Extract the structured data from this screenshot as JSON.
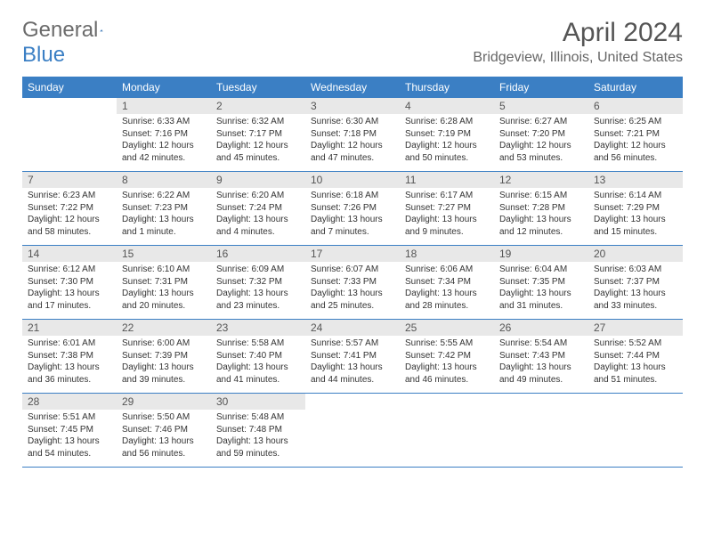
{
  "logo": {
    "part1": "General",
    "part2": "Blue"
  },
  "title": "April 2024",
  "location": "Bridgeview, Illinois, United States",
  "colors": {
    "header_bg": "#3b7fc4",
    "header_fg": "#ffffff",
    "daynum_bg": "#e8e8e8",
    "row_border": "#3b7fc4",
    "text": "#333333"
  },
  "font": {
    "family": "Arial",
    "daynum_size": 12,
    "cell_size": 10,
    "title_size": 30,
    "location_size": 16
  },
  "days_of_week": [
    "Sunday",
    "Monday",
    "Tuesday",
    "Wednesday",
    "Thursday",
    "Friday",
    "Saturday"
  ],
  "rows": [
    [
      {
        "n": "",
        "sr": "",
        "ss": "",
        "dl1": "",
        "dl2": "",
        "empty": true
      },
      {
        "n": "1",
        "sr": "Sunrise: 6:33 AM",
        "ss": "Sunset: 7:16 PM",
        "dl1": "Daylight: 12 hours",
        "dl2": "and 42 minutes."
      },
      {
        "n": "2",
        "sr": "Sunrise: 6:32 AM",
        "ss": "Sunset: 7:17 PM",
        "dl1": "Daylight: 12 hours",
        "dl2": "and 45 minutes."
      },
      {
        "n": "3",
        "sr": "Sunrise: 6:30 AM",
        "ss": "Sunset: 7:18 PM",
        "dl1": "Daylight: 12 hours",
        "dl2": "and 47 minutes."
      },
      {
        "n": "4",
        "sr": "Sunrise: 6:28 AM",
        "ss": "Sunset: 7:19 PM",
        "dl1": "Daylight: 12 hours",
        "dl2": "and 50 minutes."
      },
      {
        "n": "5",
        "sr": "Sunrise: 6:27 AM",
        "ss": "Sunset: 7:20 PM",
        "dl1": "Daylight: 12 hours",
        "dl2": "and 53 minutes."
      },
      {
        "n": "6",
        "sr": "Sunrise: 6:25 AM",
        "ss": "Sunset: 7:21 PM",
        "dl1": "Daylight: 12 hours",
        "dl2": "and 56 minutes."
      }
    ],
    [
      {
        "n": "7",
        "sr": "Sunrise: 6:23 AM",
        "ss": "Sunset: 7:22 PM",
        "dl1": "Daylight: 12 hours",
        "dl2": "and 58 minutes."
      },
      {
        "n": "8",
        "sr": "Sunrise: 6:22 AM",
        "ss": "Sunset: 7:23 PM",
        "dl1": "Daylight: 13 hours",
        "dl2": "and 1 minute."
      },
      {
        "n": "9",
        "sr": "Sunrise: 6:20 AM",
        "ss": "Sunset: 7:24 PM",
        "dl1": "Daylight: 13 hours",
        "dl2": "and 4 minutes."
      },
      {
        "n": "10",
        "sr": "Sunrise: 6:18 AM",
        "ss": "Sunset: 7:26 PM",
        "dl1": "Daylight: 13 hours",
        "dl2": "and 7 minutes."
      },
      {
        "n": "11",
        "sr": "Sunrise: 6:17 AM",
        "ss": "Sunset: 7:27 PM",
        "dl1": "Daylight: 13 hours",
        "dl2": "and 9 minutes."
      },
      {
        "n": "12",
        "sr": "Sunrise: 6:15 AM",
        "ss": "Sunset: 7:28 PM",
        "dl1": "Daylight: 13 hours",
        "dl2": "and 12 minutes."
      },
      {
        "n": "13",
        "sr": "Sunrise: 6:14 AM",
        "ss": "Sunset: 7:29 PM",
        "dl1": "Daylight: 13 hours",
        "dl2": "and 15 minutes."
      }
    ],
    [
      {
        "n": "14",
        "sr": "Sunrise: 6:12 AM",
        "ss": "Sunset: 7:30 PM",
        "dl1": "Daylight: 13 hours",
        "dl2": "and 17 minutes."
      },
      {
        "n": "15",
        "sr": "Sunrise: 6:10 AM",
        "ss": "Sunset: 7:31 PM",
        "dl1": "Daylight: 13 hours",
        "dl2": "and 20 minutes."
      },
      {
        "n": "16",
        "sr": "Sunrise: 6:09 AM",
        "ss": "Sunset: 7:32 PM",
        "dl1": "Daylight: 13 hours",
        "dl2": "and 23 minutes."
      },
      {
        "n": "17",
        "sr": "Sunrise: 6:07 AM",
        "ss": "Sunset: 7:33 PM",
        "dl1": "Daylight: 13 hours",
        "dl2": "and 25 minutes."
      },
      {
        "n": "18",
        "sr": "Sunrise: 6:06 AM",
        "ss": "Sunset: 7:34 PM",
        "dl1": "Daylight: 13 hours",
        "dl2": "and 28 minutes."
      },
      {
        "n": "19",
        "sr": "Sunrise: 6:04 AM",
        "ss": "Sunset: 7:35 PM",
        "dl1": "Daylight: 13 hours",
        "dl2": "and 31 minutes."
      },
      {
        "n": "20",
        "sr": "Sunrise: 6:03 AM",
        "ss": "Sunset: 7:37 PM",
        "dl1": "Daylight: 13 hours",
        "dl2": "and 33 minutes."
      }
    ],
    [
      {
        "n": "21",
        "sr": "Sunrise: 6:01 AM",
        "ss": "Sunset: 7:38 PM",
        "dl1": "Daylight: 13 hours",
        "dl2": "and 36 minutes."
      },
      {
        "n": "22",
        "sr": "Sunrise: 6:00 AM",
        "ss": "Sunset: 7:39 PM",
        "dl1": "Daylight: 13 hours",
        "dl2": "and 39 minutes."
      },
      {
        "n": "23",
        "sr": "Sunrise: 5:58 AM",
        "ss": "Sunset: 7:40 PM",
        "dl1": "Daylight: 13 hours",
        "dl2": "and 41 minutes."
      },
      {
        "n": "24",
        "sr": "Sunrise: 5:57 AM",
        "ss": "Sunset: 7:41 PM",
        "dl1": "Daylight: 13 hours",
        "dl2": "and 44 minutes."
      },
      {
        "n": "25",
        "sr": "Sunrise: 5:55 AM",
        "ss": "Sunset: 7:42 PM",
        "dl1": "Daylight: 13 hours",
        "dl2": "and 46 minutes."
      },
      {
        "n": "26",
        "sr": "Sunrise: 5:54 AM",
        "ss": "Sunset: 7:43 PM",
        "dl1": "Daylight: 13 hours",
        "dl2": "and 49 minutes."
      },
      {
        "n": "27",
        "sr": "Sunrise: 5:52 AM",
        "ss": "Sunset: 7:44 PM",
        "dl1": "Daylight: 13 hours",
        "dl2": "and 51 minutes."
      }
    ],
    [
      {
        "n": "28",
        "sr": "Sunrise: 5:51 AM",
        "ss": "Sunset: 7:45 PM",
        "dl1": "Daylight: 13 hours",
        "dl2": "and 54 minutes."
      },
      {
        "n": "29",
        "sr": "Sunrise: 5:50 AM",
        "ss": "Sunset: 7:46 PM",
        "dl1": "Daylight: 13 hours",
        "dl2": "and 56 minutes."
      },
      {
        "n": "30",
        "sr": "Sunrise: 5:48 AM",
        "ss": "Sunset: 7:48 PM",
        "dl1": "Daylight: 13 hours",
        "dl2": "and 59 minutes."
      },
      {
        "n": "",
        "sr": "",
        "ss": "",
        "dl1": "",
        "dl2": "",
        "empty": true
      },
      {
        "n": "",
        "sr": "",
        "ss": "",
        "dl1": "",
        "dl2": "",
        "empty": true
      },
      {
        "n": "",
        "sr": "",
        "ss": "",
        "dl1": "",
        "dl2": "",
        "empty": true
      },
      {
        "n": "",
        "sr": "",
        "ss": "",
        "dl1": "",
        "dl2": "",
        "empty": true
      }
    ]
  ]
}
